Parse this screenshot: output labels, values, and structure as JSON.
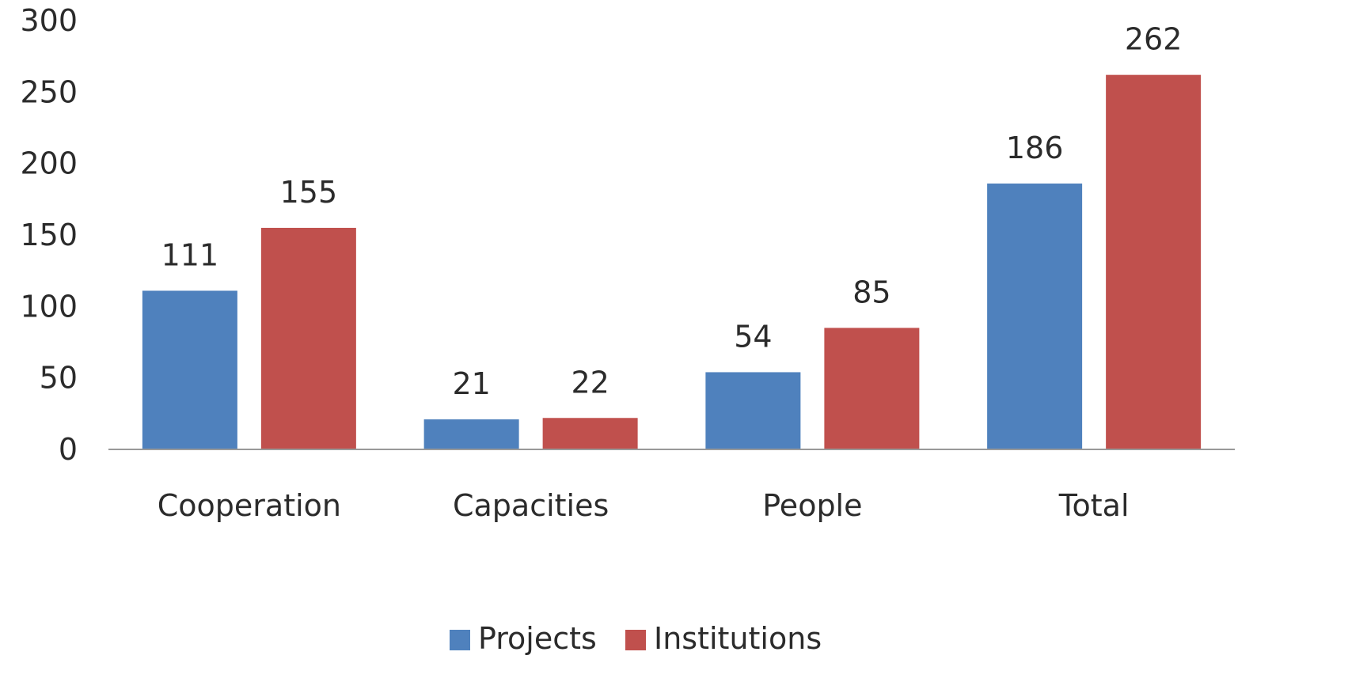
{
  "chart_data": {
    "type": "bar",
    "categories": [
      "Cooperation",
      "Capacities",
      "People",
      "Total"
    ],
    "series": [
      {
        "name": "Projects",
        "values": [
          111,
          21,
          54,
          186
        ],
        "color": "#4f81bd"
      },
      {
        "name": "Institutions",
        "values": [
          155,
          22,
          85,
          262
        ],
        "color": "#c0504d"
      }
    ],
    "ylim": [
      0,
      300
    ],
    "yticks": [
      0,
      50,
      100,
      150,
      200,
      250,
      300
    ],
    "grid": false,
    "legend": "bottom",
    "data_labels": true,
    "axis_color": "#999999",
    "text_color": "#2b2b2b"
  }
}
